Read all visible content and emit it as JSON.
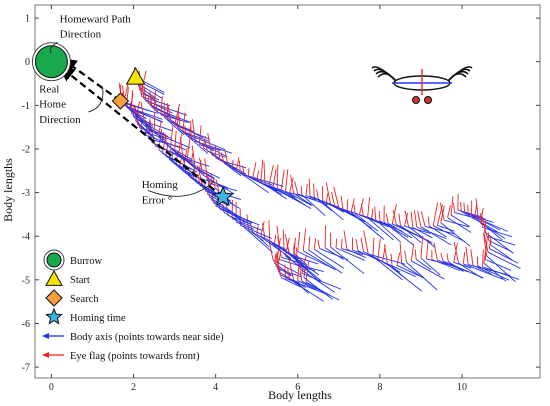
{
  "chart_data": {
    "type": "scatter",
    "xlabel": "Body lengths",
    "ylabel": "Body lengths",
    "xlim": [
      -0.4,
      11.9
    ],
    "ylim": [
      -7.25,
      1.3
    ],
    "xticks": [
      0,
      2,
      4,
      6,
      8,
      10
    ],
    "yticks": [
      1,
      0,
      -1,
      -2,
      -3,
      -4,
      -5,
      -6,
      -7
    ],
    "grid": false,
    "colors": {
      "burrow": "#1aa84f",
      "start": "#f2e600",
      "search": "#f5a03a",
      "homing": "#39b6e6",
      "body_axis": "#2233ee",
      "eye_flag": "#ee2222",
      "dashed": "#000000"
    },
    "markers": [
      {
        "name": "Burrow",
        "shape": "circle",
        "x": 0.0,
        "y": 0.0
      },
      {
        "name": "Start",
        "shape": "triangle",
        "x": 2.05,
        "y": -0.35
      },
      {
        "name": "Search",
        "shape": "diamond",
        "x": 1.68,
        "y": -0.9
      },
      {
        "name": "Homing time",
        "shape": "star",
        "x": 4.18,
        "y": -3.1
      }
    ],
    "trajectory": [
      [
        2.05,
        -0.35
      ],
      [
        2.2,
        -0.8
      ],
      [
        2.5,
        -1.1
      ],
      [
        3.0,
        -1.45
      ],
      [
        3.4,
        -1.75
      ],
      [
        4.0,
        -2.2
      ],
      [
        4.6,
        -2.55
      ],
      [
        5.2,
        -2.8
      ],
      [
        5.8,
        -3.0
      ],
      [
        6.4,
        -3.1
      ],
      [
        7.0,
        -3.35
      ],
      [
        7.6,
        -3.55
      ],
      [
        8.2,
        -3.7
      ],
      [
        8.8,
        -3.8
      ],
      [
        9.4,
        -3.75
      ],
      [
        9.9,
        -3.4
      ],
      [
        10.4,
        -3.6
      ],
      [
        10.7,
        -4.2
      ],
      [
        10.5,
        -4.7
      ],
      [
        9.8,
        -4.6
      ],
      [
        9.0,
        -4.5
      ],
      [
        8.3,
        -4.7
      ],
      [
        7.6,
        -4.35
      ],
      [
        6.8,
        -4.25
      ],
      [
        6.0,
        -4.35
      ],
      [
        5.4,
        -4.55
      ],
      [
        5.6,
        -4.95
      ],
      [
        6.2,
        -5.05
      ],
      [
        5.9,
        -4.45
      ],
      [
        5.2,
        -4.05
      ],
      [
        4.6,
        -3.75
      ],
      [
        4.0,
        -3.3
      ],
      [
        3.7,
        -2.9
      ],
      [
        3.2,
        -2.5
      ],
      [
        2.7,
        -2.1
      ],
      [
        2.2,
        -1.6
      ],
      [
        1.9,
        -1.1
      ],
      [
        1.68,
        -0.9
      ],
      [
        2.4,
        -1.55
      ],
      [
        3.0,
        -2.05
      ],
      [
        3.6,
        -2.5
      ],
      [
        4.18,
        -3.1
      ]
    ],
    "annotations": [
      {
        "text": "Homeward  Path",
        "x": 0.2,
        "y": 0.9
      },
      {
        "text": "Direction",
        "x": 0.2,
        "y": 0.55
      },
      {
        "text": "Real",
        "x": -0.3,
        "y": -0.7
      },
      {
        "text": "Home",
        "x": -0.3,
        "y": -1.05
      },
      {
        "text": "Direction",
        "x": -0.3,
        "y": -1.4
      },
      {
        "text": "Homing",
        "x": 2.2,
        "y": -2.9
      },
      {
        "text": "Error °",
        "x": 2.2,
        "y": -3.25
      }
    ],
    "legend": {
      "position": "bottom-left",
      "entries": [
        {
          "label": "Burrow",
          "marker": "circle"
        },
        {
          "label": "Start",
          "marker": "triangle"
        },
        {
          "label": "Search",
          "marker": "diamond"
        },
        {
          "label": "Homing time",
          "marker": "star"
        },
        {
          "label": "Body axis (points towards near side)",
          "marker": "blue-arrow"
        },
        {
          "label": "Eye flag (points towards front)",
          "marker": "red-arrow"
        }
      ]
    }
  }
}
